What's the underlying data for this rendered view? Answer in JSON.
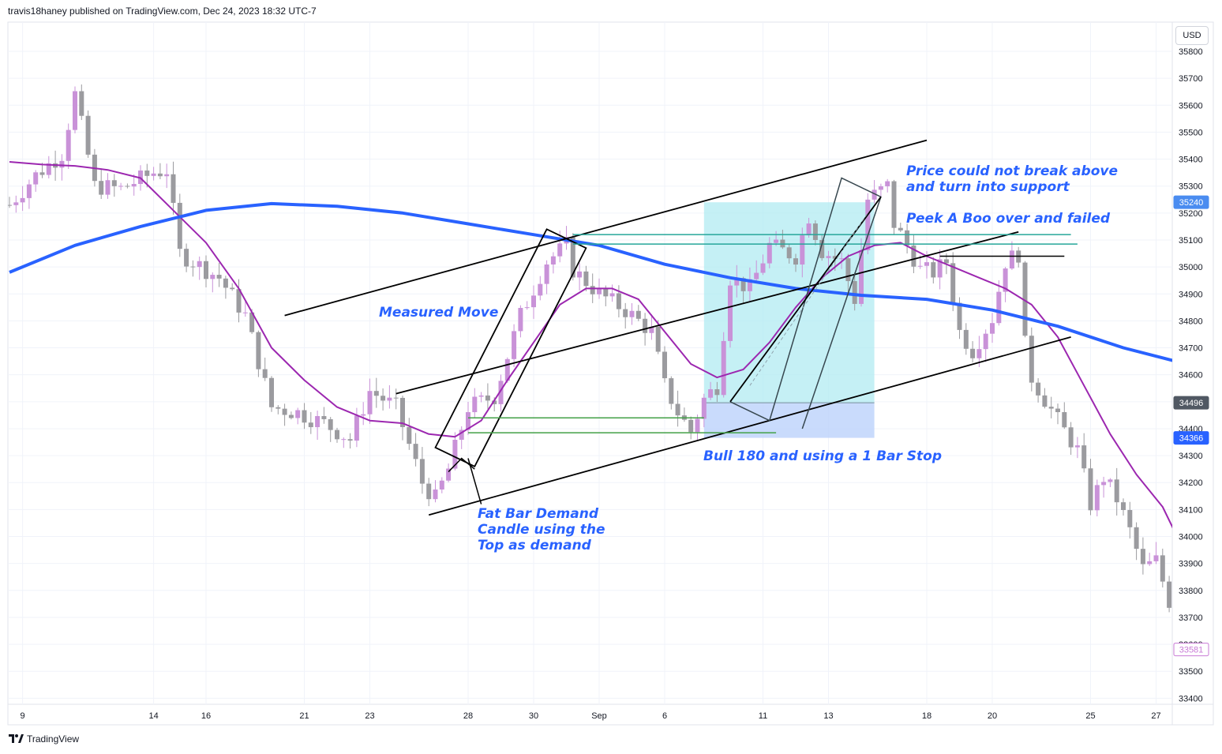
{
  "header": {
    "publisher_line": "travis18haney published on TradingView.com, Dec 24, 2023 18:32 UTC-7"
  },
  "footer": {
    "brand": "TradingView"
  },
  "price_axis": {
    "currency": "USD",
    "ticks": [
      33400,
      33500,
      33600,
      33700,
      33800,
      33900,
      34000,
      34100,
      34200,
      34300,
      34400,
      34500,
      34600,
      34700,
      34800,
      34900,
      35000,
      35100,
      35200,
      35300,
      35400,
      35500,
      35600,
      35700,
      35800
    ],
    "badges": [
      {
        "text": "35240",
        "value": 35240,
        "bg": "#4a8cf0",
        "fg": "#ffffff"
      },
      {
        "text": "34496",
        "value": 34496,
        "bg": "#505863",
        "fg": "#ffffff"
      },
      {
        "text": "34366",
        "value": 34366,
        "bg": "#2962ff",
        "fg": "#ffffff"
      },
      {
        "text": "33581",
        "value": 33581,
        "bg": "#ffffff",
        "fg": "#c97bd6"
      }
    ]
  },
  "time_axis": {
    "labels": [
      {
        "text": "9",
        "bar": 2
      },
      {
        "text": "14",
        "bar": 22
      },
      {
        "text": "16",
        "bar": 30
      },
      {
        "text": "21",
        "bar": 45
      },
      {
        "text": "23",
        "bar": 55
      },
      {
        "text": "28",
        "bar": 70
      },
      {
        "text": "30",
        "bar": 80
      },
      {
        "text": "Sep",
        "bar": 90
      },
      {
        "text": "6",
        "bar": 100
      },
      {
        "text": "11",
        "bar": 115
      },
      {
        "text": "13",
        "bar": 125
      },
      {
        "text": "18",
        "bar": 140
      },
      {
        "text": "20",
        "bar": 150
      },
      {
        "text": "25",
        "bar": 165
      },
      {
        "text": "27",
        "bar": 175
      }
    ]
  },
  "annotations": [
    {
      "lines": [
        "Price could not break above",
        "and turn into support"
      ]
    },
    {
      "lines": [
        "Peek A Boo over and failed"
      ]
    },
    {
      "lines": [
        "Measured Move"
      ]
    },
    {
      "lines": [
        "Bull 180 and using a 1 Bar Stop"
      ]
    },
    {
      "lines": [
        "Fat Bar Demand",
        "Candle using the",
        "Top as demand"
      ]
    }
  ],
  "colors": {
    "bull": "#c992d8",
    "bear": "#9b9b9f",
    "ma_fast": "#9c27b0",
    "ma_slow": "#2962ff",
    "zone_profit": "#b2ebf2",
    "zone_loss": "#bbd2fb",
    "green_line": "#43a047",
    "teal_line": "#26a69a"
  },
  "chart_data": {
    "type": "candlestick",
    "ylim": [
      33330,
      35890
    ],
    "bars": 179,
    "close_path": [
      [
        0,
        35230
      ],
      [
        4,
        35340
      ],
      [
        8,
        35420
      ],
      [
        10,
        35640
      ],
      [
        13,
        35300
      ],
      [
        17,
        35290
      ],
      [
        22,
        35350
      ],
      [
        24,
        35360
      ],
      [
        26,
        35050
      ],
      [
        32,
        34960
      ],
      [
        36,
        34820
      ],
      [
        40,
        34480
      ],
      [
        44,
        34460
      ],
      [
        48,
        34420
      ],
      [
        52,
        34360
      ],
      [
        55,
        34540
      ],
      [
        59,
        34480
      ],
      [
        63,
        34200
      ],
      [
        65,
        34140
      ],
      [
        67,
        34250
      ],
      [
        70,
        34480
      ],
      [
        74,
        34520
      ],
      [
        78,
        34820
      ],
      [
        82,
        35020
      ],
      [
        85,
        35080
      ],
      [
        86,
        34990
      ],
      [
        90,
        34900
      ],
      [
        94,
        34840
      ],
      [
        98,
        34760
      ],
      [
        100,
        34560
      ],
      [
        102,
        34460
      ],
      [
        104,
        34390
      ],
      [
        106,
        34510
      ],
      [
        108,
        34560
      ],
      [
        110,
        34960
      ],
      [
        113,
        34920
      ],
      [
        116,
        35080
      ],
      [
        120,
        35040
      ],
      [
        122,
        35190
      ],
      [
        124,
        35060
      ],
      [
        127,
        35020
      ],
      [
        129,
        34880
      ],
      [
        131,
        35250
      ],
      [
        134,
        35300
      ],
      [
        135,
        35160
      ],
      [
        137,
        35080
      ],
      [
        139,
        34990
      ],
      [
        141,
        34980
      ],
      [
        143,
        35020
      ],
      [
        145,
        34760
      ],
      [
        147,
        34690
      ],
      [
        150,
        34810
      ],
      [
        152,
        35020
      ],
      [
        154,
        35050
      ],
      [
        155,
        34710
      ],
      [
        156,
        34590
      ],
      [
        158,
        34510
      ],
      [
        160,
        34430
      ],
      [
        163,
        34320
      ],
      [
        165,
        34120
      ],
      [
        167,
        34220
      ],
      [
        169,
        34140
      ],
      [
        171,
        34020
      ],
      [
        173,
        33880
      ],
      [
        175,
        33910
      ],
      [
        177,
        33760
      ],
      [
        178,
        33581
      ]
    ],
    "series": [
      {
        "name": "",
        "type": "line",
        "points": [
          [
            0,
            35390
          ],
          [
            5,
            35380
          ],
          [
            10,
            35375
          ],
          [
            15,
            35360
          ],
          [
            20,
            35330
          ],
          [
            25,
            35210
          ],
          [
            30,
            35090
          ],
          [
            35,
            34920
          ],
          [
            40,
            34700
          ],
          [
            45,
            34580
          ],
          [
            50,
            34480
          ],
          [
            55,
            34430
          ],
          [
            60,
            34420
          ],
          [
            64,
            34380
          ],
          [
            68,
            34370
          ],
          [
            72,
            34430
          ],
          [
            76,
            34580
          ],
          [
            80,
            34720
          ],
          [
            84,
            34860
          ],
          [
            88,
            34920
          ],
          [
            92,
            34920
          ],
          [
            96,
            34880
          ],
          [
            100,
            34760
          ],
          [
            104,
            34640
          ],
          [
            108,
            34590
          ],
          [
            112,
            34620
          ],
          [
            116,
            34720
          ],
          [
            120,
            34850
          ],
          [
            124,
            34960
          ],
          [
            128,
            35040
          ],
          [
            132,
            35080
          ],
          [
            136,
            35090
          ],
          [
            140,
            35040
          ],
          [
            144,
            35000
          ],
          [
            148,
            34960
          ],
          [
            152,
            34920
          ],
          [
            156,
            34860
          ],
          [
            160,
            34740
          ],
          [
            164,
            34560
          ],
          [
            168,
            34380
          ],
          [
            172,
            34230
          ],
          [
            176,
            34110
          ],
          [
            178,
            34010
          ]
        ]
      },
      {
        "name": "",
        "type": "line",
        "points": [
          [
            0,
            34980
          ],
          [
            10,
            35080
          ],
          [
            20,
            35150
          ],
          [
            30,
            35210
          ],
          [
            40,
            35235
          ],
          [
            50,
            35225
          ],
          [
            60,
            35200
          ],
          [
            70,
            35160
          ],
          [
            80,
            35120
          ],
          [
            90,
            35080
          ],
          [
            100,
            35010
          ],
          [
            110,
            34960
          ],
          [
            120,
            34920
          ],
          [
            130,
            34895
          ],
          [
            140,
            34880
          ],
          [
            150,
            34840
          ],
          [
            160,
            34780
          ],
          [
            170,
            34700
          ],
          [
            178,
            34650
          ]
        ]
      }
    ]
  }
}
